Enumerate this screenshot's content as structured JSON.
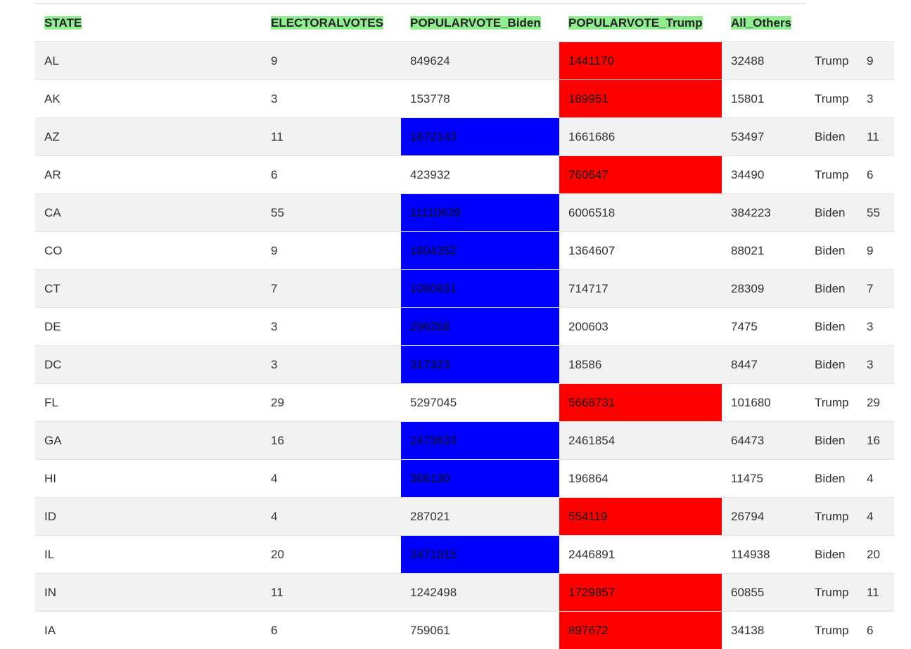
{
  "table": {
    "headers": [
      "STATE",
      "ELECTORALVOTES",
      "POPULARVOTE_Biden",
      "POPULARVOTE_Trump",
      "All_Others"
    ],
    "colors": {
      "header_highlight": "#90ee90",
      "biden": "#0000ff",
      "trump": "#ff0000",
      "row_stripe": "#f2f2f2"
    },
    "rows": [
      {
        "state": "AL",
        "ev": "9",
        "biden": "849624",
        "trump": "1441170",
        "others": "32488",
        "winner": "Trump",
        "winner_ev": "9"
      },
      {
        "state": "AK",
        "ev": "3",
        "biden": "153778",
        "trump": "189951",
        "others": "15801",
        "winner": "Trump",
        "winner_ev": "3"
      },
      {
        "state": "AZ",
        "ev": "11",
        "biden": "1672143",
        "trump": "1661686",
        "others": "53497",
        "winner": "Biden",
        "winner_ev": "11"
      },
      {
        "state": "AR",
        "ev": "6",
        "biden": "423932",
        "trump": "760647",
        "others": "34490",
        "winner": "Trump",
        "winner_ev": "6"
      },
      {
        "state": "CA",
        "ev": "55",
        "biden": "11110639",
        "trump": "6006518",
        "others": "384223",
        "winner": "Biden",
        "winner_ev": "55"
      },
      {
        "state": "CO",
        "ev": "9",
        "biden": "1804352",
        "trump": "1364607",
        "others": "88021",
        "winner": "Biden",
        "winner_ev": "9"
      },
      {
        "state": "CT",
        "ev": "7",
        "biden": "1080831",
        "trump": "714717",
        "others": "28309",
        "winner": "Biden",
        "winner_ev": "7"
      },
      {
        "state": "DE",
        "ev": "3",
        "biden": "296268",
        "trump": "200603",
        "others": "7475",
        "winner": "Biden",
        "winner_ev": "3"
      },
      {
        "state": "DC",
        "ev": "3",
        "biden": "317323",
        "trump": "18586",
        "others": "8447",
        "winner": "Biden",
        "winner_ev": "3"
      },
      {
        "state": "FL",
        "ev": "29",
        "biden": "5297045",
        "trump": "5668731",
        "others": "101680",
        "winner": "Trump",
        "winner_ev": "29"
      },
      {
        "state": "GA",
        "ev": "16",
        "biden": "2473633",
        "trump": "2461854",
        "others": "64473",
        "winner": "Biden",
        "winner_ev": "16"
      },
      {
        "state": "HI",
        "ev": "4",
        "biden": "366130",
        "trump": "196864",
        "others": "11475",
        "winner": "Biden",
        "winner_ev": "4"
      },
      {
        "state": "ID",
        "ev": "4",
        "biden": "287021",
        "trump": "554119",
        "others": "26794",
        "winner": "Trump",
        "winner_ev": "4"
      },
      {
        "state": "IL",
        "ev": "20",
        "biden": "3471915",
        "trump": "2446891",
        "others": "114938",
        "winner": "Biden",
        "winner_ev": "20"
      },
      {
        "state": "IN",
        "ev": "11",
        "biden": "1242498",
        "trump": "1729857",
        "others": "60855",
        "winner": "Trump",
        "winner_ev": "11"
      },
      {
        "state": "IA",
        "ev": "6",
        "biden": "759061",
        "trump": "897672",
        "others": "34138",
        "winner": "Trump",
        "winner_ev": "6"
      }
    ]
  }
}
